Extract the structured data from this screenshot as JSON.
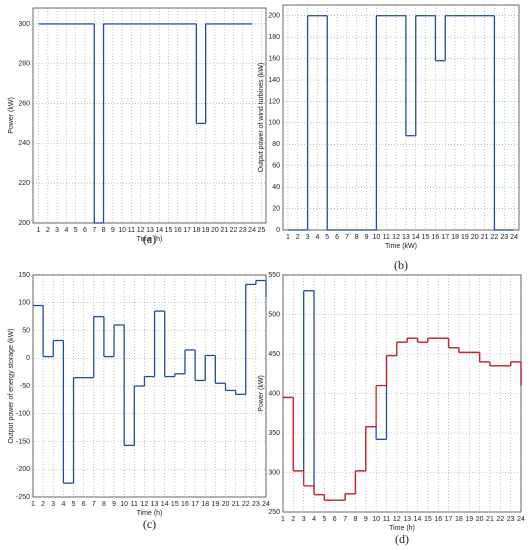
{
  "chart_data": [
    {
      "type": "step",
      "caption": "(a)",
      "xlabel": "Time (h)",
      "ylabel": "Power (kW)",
      "x": [
        1,
        2,
        3,
        4,
        5,
        6,
        7,
        8,
        9,
        10,
        11,
        12,
        13,
        14,
        15,
        16,
        17,
        18,
        19,
        20,
        21,
        22,
        23
      ],
      "series": [
        {
          "color": "#1f4e99",
          "values": [
            300,
            300,
            300,
            300,
            300,
            300,
            200,
            300,
            300,
            300,
            300,
            300,
            300,
            300,
            300,
            300,
            300,
            250,
            300,
            300,
            300,
            300,
            300
          ]
        }
      ],
      "xlim": [
        0.4,
        25.5
      ],
      "ylim": [
        200,
        308
      ],
      "xticks": [
        1,
        2,
        3,
        4,
        5,
        6,
        7,
        8,
        9,
        10,
        11,
        12,
        13,
        14,
        15,
        16,
        17,
        18,
        19,
        20,
        21,
        22,
        23,
        24,
        25
      ],
      "yticks": [
        200,
        220,
        240,
        260,
        280,
        300
      ],
      "grid": true
    },
    {
      "type": "step",
      "caption": "(b)",
      "xlabel": "Time (kW)",
      "ylabel": "Output power of wind turbines (kW)",
      "x": [
        1,
        2,
        3,
        4,
        5,
        6,
        7,
        8,
        9,
        10,
        11,
        12,
        13,
        14,
        15,
        16,
        17,
        18,
        19,
        20,
        21,
        22,
        23
      ],
      "series": [
        {
          "color": "#1f4e99",
          "values": [
            0,
            0,
            200,
            200,
            0,
            0,
            0,
            0,
            0,
            200,
            200,
            200,
            88,
            200,
            200,
            158,
            200,
            200,
            200,
            200,
            200,
            0,
            0
          ]
        }
      ],
      "xlim": [
        0.5,
        24.5
      ],
      "ylim": [
        0,
        210
      ],
      "xticks": [
        1,
        2,
        3,
        4,
        5,
        6,
        7,
        8,
        9,
        10,
        11,
        12,
        13,
        14,
        15,
        16,
        17,
        18,
        19,
        20,
        21,
        22,
        23,
        24
      ],
      "yticks": [
        0,
        20,
        40,
        60,
        80,
        100,
        120,
        140,
        160,
        180,
        200
      ],
      "grid": true
    },
    {
      "type": "step",
      "caption": "(c)",
      "xlabel": "Time (h)",
      "ylabel": "Output power of energy storage (kW)",
      "x": [
        1,
        2,
        3,
        4,
        5,
        6,
        7,
        8,
        9,
        10,
        11,
        12,
        13,
        14,
        15,
        16,
        17,
        18,
        19,
        20,
        21,
        22,
        23,
        24
      ],
      "series": [
        {
          "color": "#1f4e99",
          "values": [
            95,
            3,
            32,
            -225,
            -35,
            -35,
            75,
            3,
            60,
            -157,
            -50,
            -33,
            85,
            -33,
            -28,
            15,
            -40,
            5,
            -45,
            -58,
            -65,
            133,
            140,
            110
          ]
        }
      ],
      "xlim": [
        1,
        24
      ],
      "ylim": [
        -250,
        150
      ],
      "xticks": [
        1,
        2,
        3,
        4,
        5,
        6,
        7,
        8,
        9,
        10,
        11,
        12,
        13,
        14,
        15,
        16,
        17,
        18,
        19,
        20,
        21,
        22,
        23,
        24
      ],
      "yticks": [
        -250,
        -200,
        -150,
        -100,
        -50,
        0,
        50,
        100,
        150
      ],
      "grid": true
    },
    {
      "type": "step",
      "caption": "(d)",
      "xlabel": "Time (h)",
      "ylabel": "Power (kW)",
      "x": [
        1,
        2,
        3,
        4,
        5,
        6,
        7,
        8,
        9,
        10,
        11,
        12,
        13,
        14,
        15,
        16,
        17,
        18,
        19,
        20,
        21,
        22,
        23,
        24
      ],
      "series": [
        {
          "color": "#1f4e99",
          "values": [
            395,
            302,
            530,
            272,
            265,
            265,
            273,
            302,
            358,
            342,
            448,
            465,
            470,
            465,
            470,
            470,
            458,
            452,
            452,
            440,
            435,
            435,
            440,
            410
          ]
        },
        {
          "color": "#d42020",
          "values": [
            395,
            302,
            283,
            272,
            265,
            265,
            273,
            302,
            358,
            410,
            448,
            465,
            470,
            465,
            470,
            470,
            458,
            452,
            452,
            440,
            435,
            435,
            440,
            410
          ]
        }
      ],
      "xlim": [
        1,
        24
      ],
      "ylim": [
        250,
        550
      ],
      "xticks": [
        1,
        2,
        3,
        4,
        5,
        6,
        7,
        8,
        9,
        10,
        11,
        12,
        13,
        14,
        15,
        16,
        17,
        18,
        19,
        20,
        21,
        22,
        23,
        24
      ],
      "yticks": [
        250,
        300,
        350,
        400,
        450,
        500,
        550
      ],
      "grid": true
    }
  ]
}
